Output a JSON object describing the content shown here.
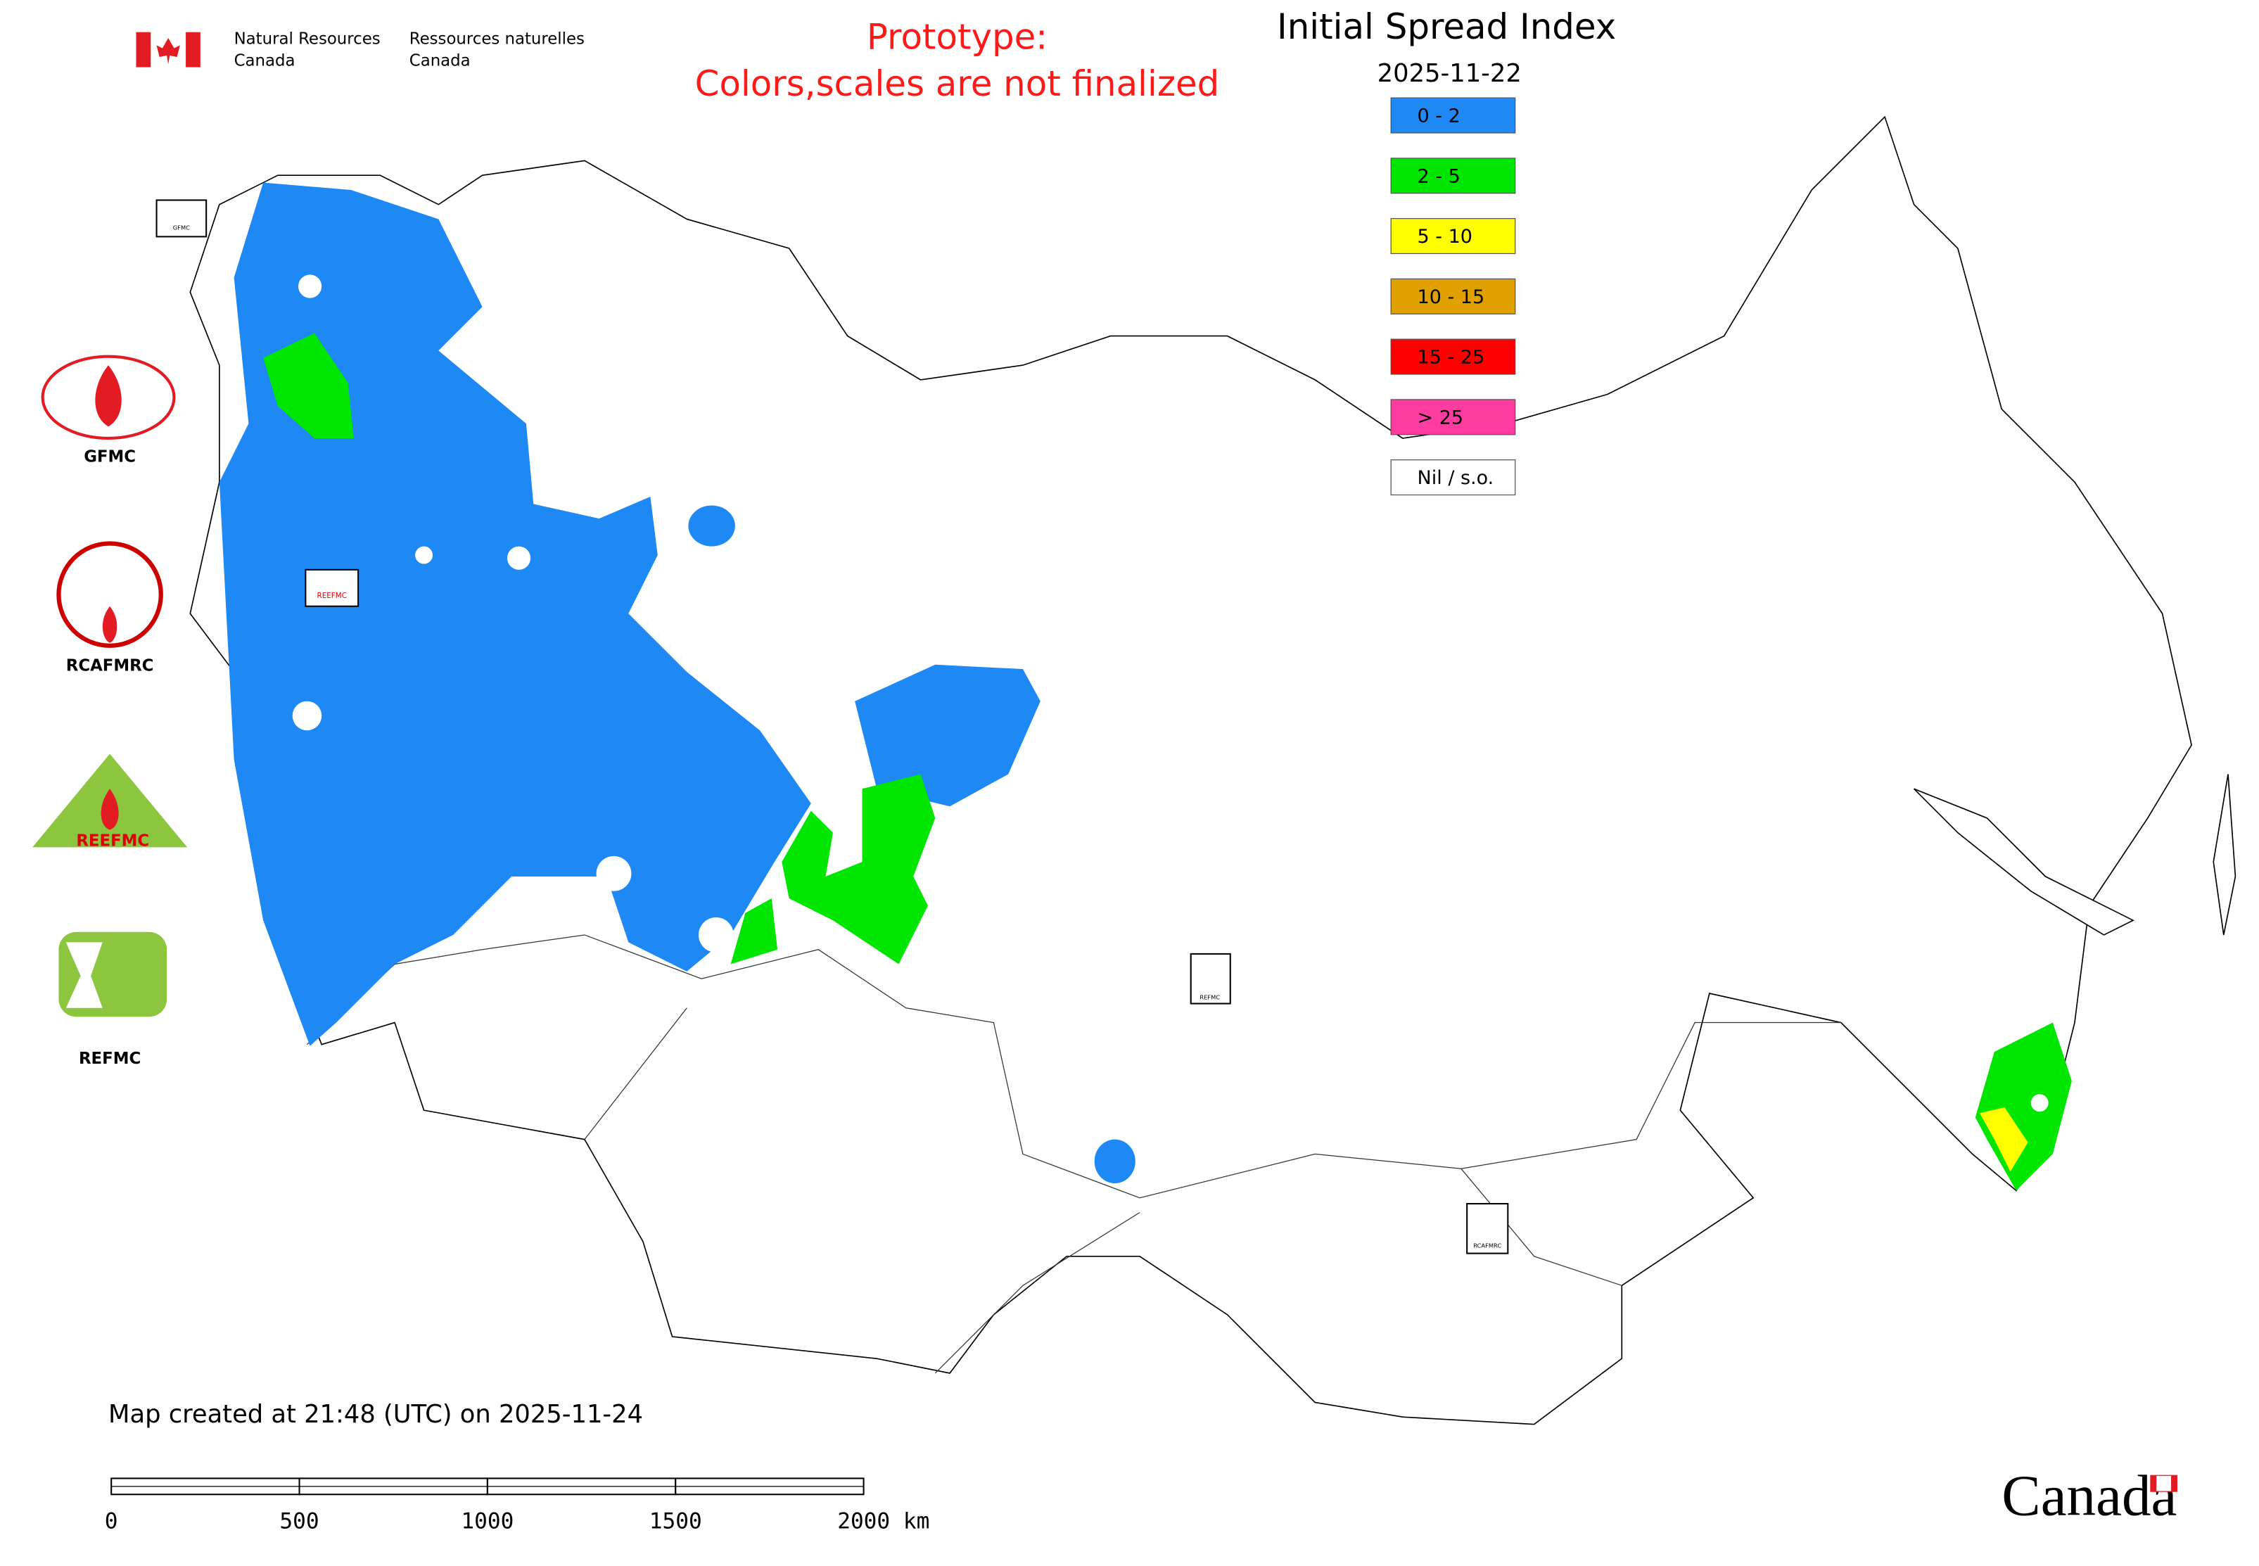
{
  "header": {
    "department_en": [
      "Natural Resources",
      "Canada"
    ],
    "department_fr": [
      "Ressources naturelles",
      "Canada"
    ],
    "notice": [
      "Prototype:",
      "Colors,scales are not finalized"
    ]
  },
  "legend": {
    "title": "Initial Spread Index",
    "date": "2025-11-22",
    "items": [
      {
        "label": "0 - 2",
        "color": "#1e88f5"
      },
      {
        "label": "2 - 5",
        "color": "#00e600"
      },
      {
        "label": "5 - 10",
        "color": "#ffff00"
      },
      {
        "label": "10 - 15",
        "color": "#e0a000"
      },
      {
        "label": "15 - 25",
        "color": "#ff0000"
      },
      {
        "label": "> 25",
        "color": "#ff3ca0"
      },
      {
        "label": "Nil / s.o.",
        "color": "#ffffff"
      }
    ]
  },
  "partners": [
    "GFMC",
    "RCAFMRC",
    "REEFMC",
    "REFMC"
  ],
  "map_markers": [
    "GFMC",
    "REEFMC",
    "REFMC",
    "RCAFMRC"
  ],
  "footer": {
    "created": "Map created at 21:48 (UTC) on 2025-11-24",
    "scale_labels": [
      "0",
      "500",
      "1000",
      "1500",
      "2000 km"
    ],
    "wordmark": "Canada"
  }
}
